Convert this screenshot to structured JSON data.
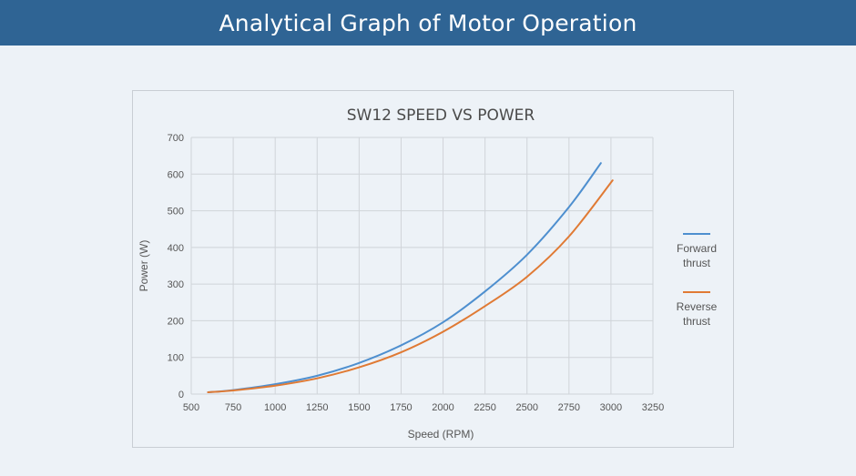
{
  "header": {
    "title": "Analytical Graph of Motor Operation"
  },
  "colors": {
    "banner": "#2f6494",
    "forward": "#4e8fcf",
    "reverse": "#e07a34",
    "grid": "#d0d4d9"
  },
  "chart_data": {
    "type": "line",
    "title": "SW12 SPEED VS POWER",
    "xlabel": "Speed (RPM)",
    "ylabel": "Power (W)",
    "xlim": [
      500,
      3250
    ],
    "ylim": [
      0,
      700
    ],
    "xticks": [
      500,
      750,
      1000,
      1250,
      1500,
      1750,
      2000,
      2250,
      2500,
      2750,
      3000,
      3250
    ],
    "yticks": [
      0,
      100,
      200,
      300,
      400,
      500,
      600,
      700
    ],
    "grid": true,
    "legend_position": "right",
    "series": [
      {
        "name": "Forward thrust",
        "name_lines": [
          "Forward",
          "thrust"
        ],
        "color": "#4e8fcf",
        "x": [
          600,
          750,
          1000,
          1250,
          1500,
          1750,
          2000,
          2250,
          2500,
          2750,
          2940
        ],
        "y": [
          5,
          11,
          27,
          50,
          85,
          133,
          196,
          280,
          380,
          510,
          630
        ]
      },
      {
        "name": "Reverse thrust",
        "name_lines": [
          "Reverse",
          "thrust"
        ],
        "color": "#e07a34",
        "x": [
          600,
          750,
          1000,
          1250,
          1500,
          1750,
          2000,
          2250,
          2500,
          2750,
          3010
        ],
        "y": [
          5,
          10,
          23,
          43,
          73,
          114,
          170,
          240,
          320,
          430,
          583
        ]
      }
    ]
  }
}
